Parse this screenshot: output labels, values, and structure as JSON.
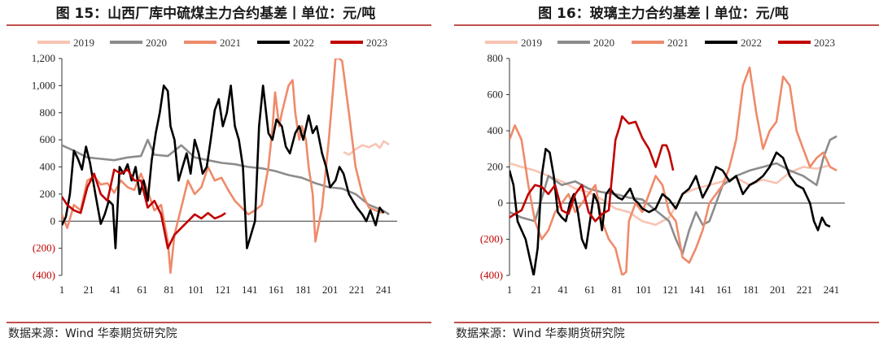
{
  "charts": [
    {
      "title": "图 15：山西厂库中硫煤主力合约基差丨单位：元/吨",
      "source": "数据来源：Wind 华泰期货研究院"
    },
    {
      "title": "图 16：玻璃主力合约基差丨单位：元/吨",
      "source": "数据来源：Wind 华泰期货研究院"
    }
  ],
  "chart_data": [
    {
      "type": "line",
      "xlim": [
        1,
        251
      ],
      "xticks": [
        "1",
        "21",
        "41",
        "61",
        "81",
        "101",
        "121",
        "141",
        "161",
        "181",
        "201",
        "221",
        "241"
      ],
      "ylim": [
        -400,
        1200
      ],
      "yticks": [
        "(400)",
        "(200)",
        "0",
        "200",
        "400",
        "600",
        "800",
        "1,000",
        "1,200"
      ],
      "legend_position": "top",
      "colors": {
        "2019": "#f8c4b2",
        "2020": "#8c8c8c",
        "2021": "#ef8a6a",
        "2022": "#000000",
        "2023": "#c00000"
      },
      "series": [
        {
          "name": "2019",
          "x": [
            211,
            215,
            220,
            225,
            230,
            235,
            238,
            241,
            245
          ],
          "values": [
            510,
            490,
            530,
            560,
            545,
            570,
            540,
            590,
            565
          ]
        },
        {
          "name": "2020",
          "x": [
            1,
            10,
            20,
            30,
            40,
            50,
            60,
            65,
            70,
            80,
            90,
            100,
            110,
            120,
            130,
            140,
            150,
            160,
            170,
            180,
            190,
            200,
            210,
            220,
            230,
            240,
            245
          ],
          "values": [
            560,
            520,
            470,
            460,
            450,
            470,
            480,
            600,
            490,
            480,
            560,
            470,
            450,
            430,
            420,
            400,
            390,
            370,
            340,
            320,
            280,
            250,
            240,
            200,
            120,
            80,
            50
          ]
        },
        {
          "name": "2021",
          "x": [
            1,
            5,
            10,
            15,
            20,
            25,
            30,
            35,
            40,
            45,
            50,
            55,
            60,
            65,
            70,
            75,
            80,
            82,
            85,
            90,
            95,
            100,
            105,
            110,
            115,
            120,
            125,
            130,
            135,
            140,
            145,
            150,
            155,
            158,
            160,
            163,
            165,
            170,
            173,
            175,
            178,
            180,
            183,
            185,
            188,
            190,
            195,
            200,
            203,
            205,
            208,
            210,
            215,
            220,
            225,
            230,
            235,
            240
          ],
          "values": [
            50,
            -50,
            120,
            80,
            300,
            330,
            270,
            280,
            210,
            300,
            250,
            230,
            350,
            220,
            80,
            120,
            -150,
            -380,
            -100,
            100,
            300,
            200,
            250,
            400,
            300,
            320,
            230,
            150,
            100,
            50,
            80,
            120,
            400,
            680,
            950,
            700,
            800,
            1000,
            1040,
            800,
            600,
            700,
            600,
            400,
            200,
            -150,
            100,
            600,
            950,
            1200,
            1200,
            1180,
            800,
            400,
            200,
            100,
            80,
            60
          ]
        },
        {
          "name": "2022",
          "x": [
            1,
            4,
            7,
            10,
            13,
            16,
            19,
            22,
            26,
            30,
            33,
            36,
            39,
            41,
            44,
            47,
            50,
            53,
            56,
            59,
            62,
            65,
            68,
            71,
            74,
            77,
            80,
            82,
            85,
            88,
            91,
            94,
            97,
            100,
            103,
            106,
            109,
            112,
            115,
            118,
            121,
            124,
            127,
            130,
            133,
            136,
            139,
            142,
            145,
            148,
            151,
            155,
            158,
            161,
            165,
            168,
            171,
            175,
            178,
            181,
            185,
            188,
            191,
            195,
            198,
            201,
            205,
            208,
            211,
            215,
            218,
            221,
            225,
            228,
            231,
            235,
            238,
            241
          ],
          "values": [
            -30,
            30,
            200,
            520,
            460,
            380,
            550,
            430,
            200,
            -20,
            50,
            150,
            120,
            -200,
            400,
            350,
            420,
            300,
            400,
            200,
            300,
            150,
            450,
            650,
            800,
            1000,
            960,
            700,
            600,
            300,
            400,
            500,
            350,
            600,
            500,
            350,
            400,
            600,
            820,
            900,
            700,
            800,
            1000,
            700,
            600,
            400,
            -200,
            -100,
            0,
            700,
            1000,
            650,
            600,
            750,
            700,
            550,
            500,
            650,
            700,
            600,
            780,
            650,
            700,
            500,
            400,
            250,
            300,
            400,
            350,
            200,
            150,
            100,
            50,
            0,
            80,
            -30,
            100,
            60
          ]
        },
        {
          "name": "2023",
          "x": [
            1,
            5,
            10,
            15,
            20,
            25,
            30,
            35,
            40,
            45,
            50,
            55,
            60,
            65,
            70,
            75,
            80,
            85,
            90,
            95,
            100,
            105,
            110,
            115,
            120,
            123
          ],
          "values": [
            180,
            120,
            80,
            60,
            250,
            350,
            200,
            150,
            380,
            350,
            380,
            300,
            300,
            100,
            150,
            50,
            -200,
            -100,
            -50,
            0,
            50,
            20,
            60,
            20,
            40,
            60
          ]
        }
      ]
    },
    {
      "type": "line",
      "xlim": [
        1,
        251
      ],
      "xticks": [
        "1",
        "21",
        "41",
        "61",
        "81",
        "101",
        "121",
        "141",
        "161",
        "181",
        "201",
        "221",
        "241"
      ],
      "ylim": [
        -400,
        800
      ],
      "yticks": [
        "(400)",
        "(200)",
        "0",
        "200",
        "400",
        "600",
        "800"
      ],
      "legend_position": "top",
      "colors": {
        "2019": "#f8c4b2",
        "2020": "#8c8c8c",
        "2021": "#ef8a6a",
        "2022": "#000000",
        "2023": "#c00000"
      },
      "series": [
        {
          "name": "2019",
          "x": [
            1,
            10,
            20,
            30,
            40,
            50,
            60,
            70,
            80,
            90,
            100,
            110,
            120,
            130,
            140,
            150,
            160,
            170,
            180,
            190,
            200,
            210,
            220,
            230,
            240
          ],
          "values": [
            220,
            200,
            180,
            150,
            120,
            80,
            60,
            20,
            -30,
            -50,
            -100,
            -120,
            -80,
            50,
            80,
            100,
            120,
            140,
            100,
            130,
            110,
            170,
            200,
            190,
            210
          ]
        },
        {
          "name": "2020",
          "x": [
            1,
            10,
            20,
            30,
            40,
            50,
            60,
            70,
            80,
            90,
            100,
            110,
            120,
            125,
            130,
            135,
            140,
            145,
            150,
            160,
            170,
            180,
            190,
            200,
            210,
            220,
            230,
            235,
            240,
            245
          ],
          "values": [
            -50,
            -80,
            -100,
            150,
            100,
            120,
            80,
            60,
            50,
            30,
            20,
            -40,
            -100,
            -200,
            -280,
            -150,
            -50,
            -120,
            -100,
            100,
            150,
            180,
            200,
            220,
            180,
            150,
            100,
            250,
            350,
            370
          ]
        },
        {
          "name": "2021",
          "x": [
            1,
            5,
            10,
            15,
            20,
            25,
            30,
            35,
            40,
            45,
            50,
            55,
            60,
            65,
            70,
            75,
            80,
            85,
            88,
            90,
            95,
            100,
            105,
            110,
            115,
            120,
            125,
            130,
            135,
            140,
            145,
            150,
            155,
            160,
            165,
            170,
            175,
            180,
            185,
            190,
            195,
            200,
            205,
            210,
            215,
            220,
            225,
            230,
            235,
            240,
            245
          ],
          "values": [
            350,
            430,
            350,
            100,
            -100,
            -200,
            -150,
            -50,
            0,
            50,
            -50,
            0,
            50,
            100,
            -100,
            -200,
            -250,
            -400,
            -380,
            -100,
            0,
            -50,
            50,
            150,
            100,
            -50,
            -100,
            -300,
            -330,
            -250,
            -150,
            0,
            50,
            100,
            200,
            350,
            650,
            750,
            500,
            300,
            400,
            450,
            700,
            650,
            400,
            300,
            200,
            250,
            280,
            200,
            180
          ]
        },
        {
          "name": "2022",
          "x": [
            1,
            4,
            7,
            10,
            13,
            16,
            19,
            22,
            25,
            28,
            31,
            34,
            37,
            40,
            43,
            46,
            49,
            52,
            55,
            58,
            61,
            64,
            67,
            70,
            73,
            76,
            79,
            82,
            85,
            88,
            91,
            94,
            97,
            100,
            105,
            110,
            115,
            120,
            125,
            130,
            135,
            140,
            145,
            150,
            155,
            160,
            165,
            170,
            175,
            180,
            185,
            190,
            195,
            200,
            205,
            210,
            215,
            220,
            225,
            228,
            231,
            234,
            237,
            240
          ],
          "values": [
            180,
            100,
            -100,
            -150,
            -200,
            -300,
            -400,
            -250,
            150,
            300,
            280,
            150,
            -50,
            -80,
            -100,
            0,
            50,
            -50,
            -200,
            -250,
            -100,
            50,
            0,
            -150,
            50,
            80,
            50,
            30,
            20,
            50,
            80,
            20,
            0,
            -30,
            -50,
            -30,
            50,
            20,
            -30,
            50,
            80,
            150,
            30,
            100,
            200,
            180,
            120,
            150,
            50,
            100,
            120,
            150,
            200,
            280,
            250,
            150,
            100,
            80,
            0,
            -100,
            -150,
            -80,
            -120,
            -130
          ]
        },
        {
          "name": "2023",
          "x": [
            1,
            5,
            10,
            15,
            20,
            25,
            30,
            35,
            40,
            45,
            50,
            55,
            60,
            65,
            70,
            75,
            80,
            83,
            85,
            90,
            95,
            100,
            105,
            110,
            115,
            118,
            120,
            123
          ],
          "values": [
            -80,
            -60,
            -40,
            50,
            100,
            90,
            50,
            100,
            -40,
            -60,
            50,
            100,
            -50,
            -100,
            -60,
            -40,
            350,
            420,
            480,
            440,
            450,
            360,
            300,
            200,
            320,
            320,
            280,
            180
          ]
        }
      ]
    }
  ]
}
